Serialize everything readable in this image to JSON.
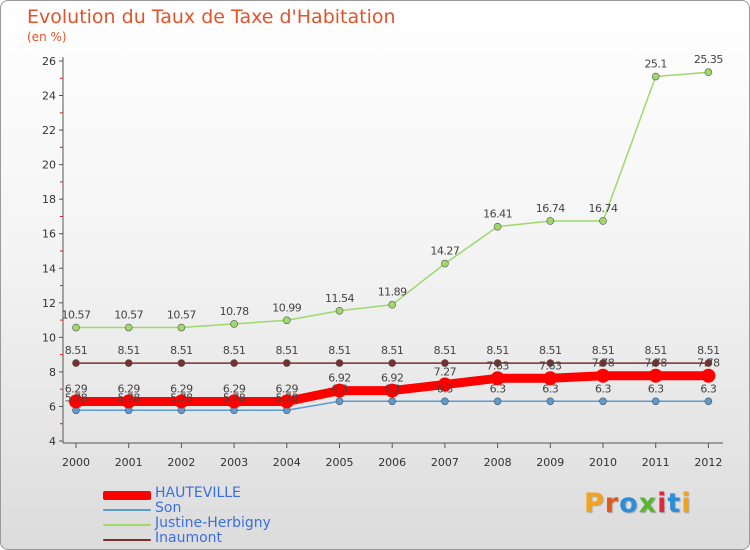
{
  "title": "Evolution du Taux de Taxe d'Habitation",
  "subtitle": "(en %)",
  "logo": "Proxiti",
  "chart_data": {
    "type": "line",
    "x": [
      "2000",
      "2001",
      "2002",
      "2003",
      "2004",
      "2005",
      "2006",
      "2007",
      "2008",
      "2009",
      "2010",
      "2011",
      "2012"
    ],
    "ylim": [
      4,
      26
    ],
    "yticks": [
      4,
      6,
      8,
      10,
      12,
      14,
      16,
      18,
      20,
      22,
      24,
      26
    ],
    "grid": false,
    "legend_position": "bottom-left",
    "series": [
      {
        "name": "HAUTEVILLE",
        "color": "#ff0000",
        "values": [
          6.29,
          6.29,
          6.29,
          6.29,
          6.29,
          6.92,
          6.92,
          7.27,
          7.63,
          7.63,
          7.78,
          7.78,
          7.78
        ],
        "labels": [
          "6.29",
          "6.29",
          "6.29",
          "6.29",
          "6.29",
          "6.92",
          "6.92",
          "7.27",
          "7.63",
          "7.63",
          "7.78",
          "7.78",
          "7.78"
        ]
      },
      {
        "name": "Son",
        "color": "#5b9bd0",
        "values": [
          5.78,
          5.78,
          5.78,
          5.78,
          5.78,
          6.3,
          6.3,
          6.3,
          6.3,
          6.3,
          6.3,
          6.3,
          6.3
        ],
        "labels": [
          "5.78",
          "5.78",
          "5.78",
          "5.78",
          "5.78",
          "6.3",
          "6.3",
          "6.3",
          "6.3",
          "6.3",
          "6.3",
          "6.3",
          "6.3"
        ]
      },
      {
        "name": "Justine-Herbigny",
        "color": "#9ed96a",
        "values": [
          10.57,
          10.57,
          10.57,
          10.78,
          10.99,
          11.54,
          11.89,
          14.27,
          16.41,
          16.74,
          16.74,
          25.1,
          25.35
        ],
        "labels": [
          "10.57",
          "10.57",
          "10.57",
          "10.78",
          "10.99",
          "11.54",
          "11.89",
          "14.27",
          "16.41",
          "16.74",
          "16.74",
          "25.1",
          "25.35"
        ]
      },
      {
        "name": "Inaumont",
        "color": "#7a2e2e",
        "values": [
          8.51,
          8.51,
          8.51,
          8.51,
          8.51,
          8.51,
          8.51,
          8.51,
          8.51,
          8.51,
          8.51,
          8.51,
          8.51
        ],
        "labels": [
          "8.51",
          "8.51",
          "8.51",
          "8.51",
          "8.51",
          "8.51",
          "8.51",
          "8.51",
          "8.51",
          "8.51",
          "8.51",
          "8.51",
          "8.51"
        ]
      }
    ]
  }
}
